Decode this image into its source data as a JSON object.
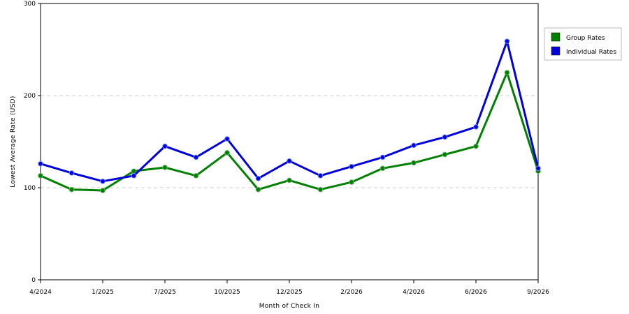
{
  "chart_data": {
    "type": "line",
    "title": "",
    "xlabel": "Month of Check In",
    "ylabel": "Lowest Average Rate (USD)",
    "ylim": [
      0,
      300
    ],
    "yticks": [
      0,
      100,
      200,
      300
    ],
    "grid": "horizontal dashed",
    "legend_position": "top-right",
    "x_tick_labels": [
      "4/2024",
      "1/2025",
      "7/2025",
      "10/2025",
      "12/2025",
      "2/2026",
      "4/2026",
      "6/2026",
      "9/2026"
    ],
    "x_tick_index": [
      0,
      2,
      4,
      6,
      8,
      10,
      12,
      14,
      16
    ],
    "x_count": 17,
    "series": [
      {
        "name": "Group Rates",
        "color": "#008000",
        "values": [
          113,
          98,
          97,
          118,
          122,
          113,
          138,
          98,
          108,
          98,
          106,
          121,
          127,
          136,
          145,
          225,
          118
        ]
      },
      {
        "name": "Individual Rates",
        "color": "#0000dd",
        "values": [
          126,
          116,
          107,
          113,
          145,
          133,
          153,
          110,
          129,
          113,
          123,
          133,
          146,
          155,
          166,
          259,
          121
        ]
      }
    ]
  }
}
